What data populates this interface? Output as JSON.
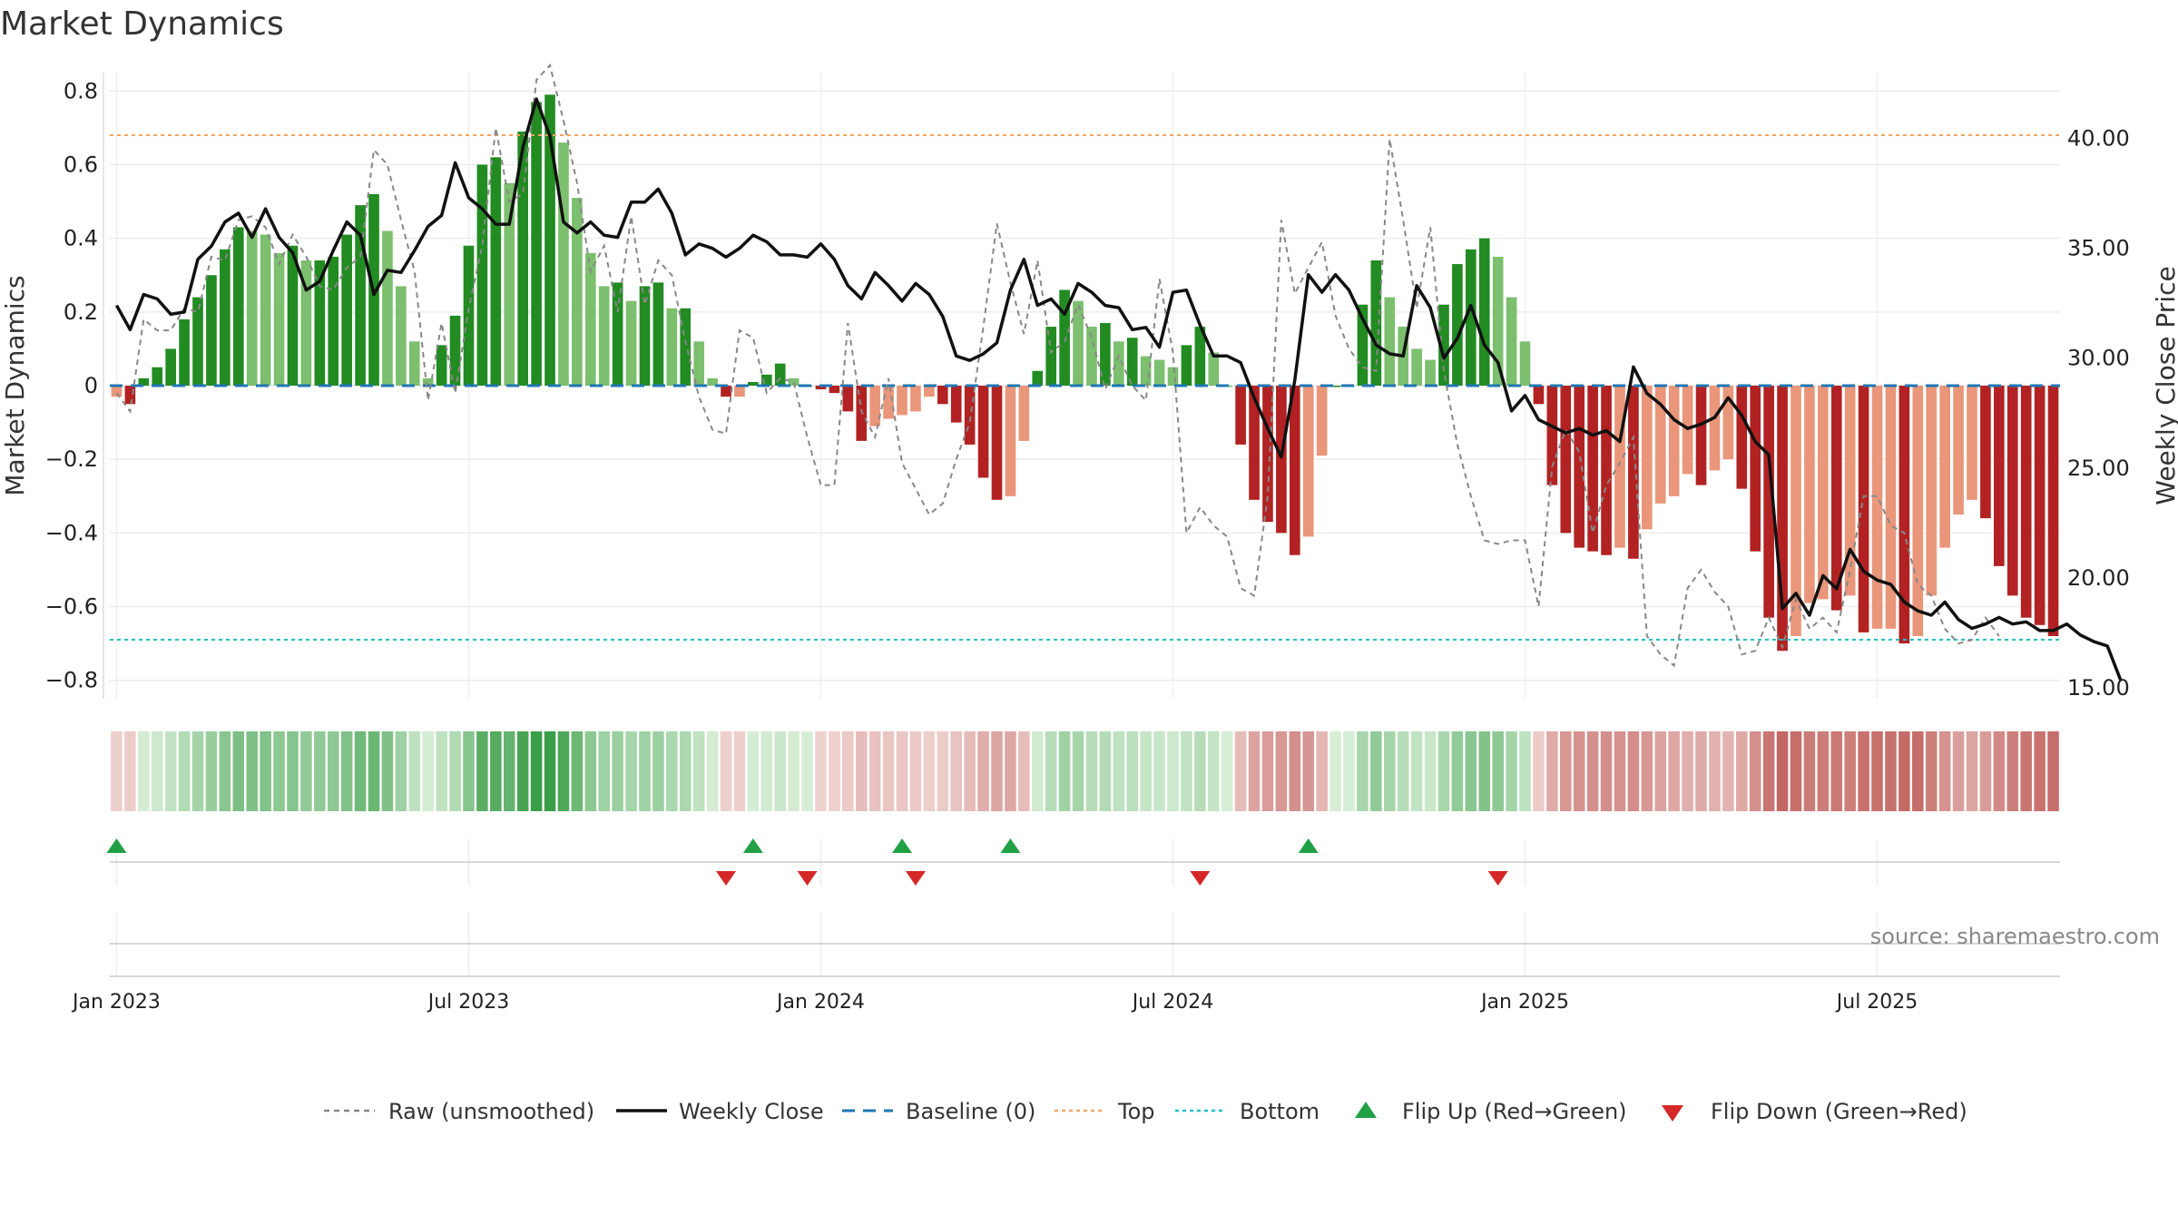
{
  "title": "Market Dynamics",
  "source": "source: sharemaestro.com",
  "chart_data": {
    "type": "bar",
    "title": "Market Dynamics",
    "ylabel_left": "Market Dynamics",
    "ylabel_right": "Weekly Close Price",
    "ylim_left": [
      -0.85,
      0.85
    ],
    "ylim_right": [
      14.5,
      43.0
    ],
    "yticks_left": [
      "0.8",
      "0.6",
      "0.4",
      "0.2",
      "0",
      "−0.2",
      "−0.4",
      "−0.6",
      "−0.8"
    ],
    "yticks_left_values": [
      0.8,
      0.6,
      0.4,
      0.2,
      0,
      -0.2,
      -0.4,
      -0.6,
      -0.8
    ],
    "yticks_right": [
      "40.00",
      "35.00",
      "30.00",
      "25.00",
      "20.00",
      "15.00"
    ],
    "yticks_right_values": [
      40,
      35,
      30,
      25,
      20,
      15
    ],
    "xticks": [
      "Jan 2023",
      "Jul 2023",
      "Jan 2024",
      "Jul 2024",
      "Jan 2025",
      "Jul 2025"
    ],
    "xticks_weeks": [
      0,
      26,
      52,
      78,
      104,
      130
    ],
    "top_line": 0.68,
    "bottom_line": -0.69,
    "baseline": 0,
    "colors": {
      "strong_green": "#228B22",
      "light_green": "#7CBF6E",
      "strong_red": "#B22222",
      "light_red": "#E9967A",
      "top": "#F4A460",
      "bottom": "#20C0C8",
      "baseline": "#1F77B4",
      "raw": "#888888",
      "close": "#111111",
      "flip_up": "#22A045",
      "flip_down": "#D62728"
    },
    "dynamics": [
      -0.03,
      -0.05,
      0.02,
      0.05,
      0.1,
      0.18,
      0.24,
      0.3,
      0.37,
      0.43,
      0.42,
      0.41,
      0.36,
      0.38,
      0.34,
      0.34,
      0.35,
      0.41,
      0.49,
      0.52,
      0.42,
      0.27,
      0.12,
      0.02,
      0.11,
      0.19,
      0.38,
      0.6,
      0.62,
      0.55,
      0.69,
      0.77,
      0.79,
      0.66,
      0.51,
      0.36,
      0.27,
      0.28,
      0.23,
      0.27,
      0.28,
      0.21,
      0.21,
      0.12,
      0.02,
      -0.03,
      -0.03,
      0.01,
      0.03,
      0.06,
      0.02,
      0.0,
      -0.01,
      -0.02,
      -0.07,
      -0.15,
      -0.11,
      -0.09,
      -0.08,
      -0.07,
      -0.03,
      -0.05,
      -0.1,
      -0.16,
      -0.25,
      -0.31,
      -0.3,
      -0.15,
      0.04,
      0.16,
      0.26,
      0.23,
      0.16,
      0.17,
      0.12,
      0.13,
      0.08,
      0.07,
      0.05,
      0.11,
      0.16,
      0.09,
      0.0,
      -0.16,
      -0.31,
      -0.37,
      -0.4,
      -0.46,
      -0.41,
      -0.19,
      0.0,
      0.0,
      0.22,
      0.34,
      0.24,
      0.16,
      0.1,
      0.07,
      0.22,
      0.33,
      0.37,
      0.4,
      0.35,
      0.24,
      0.12,
      -0.05,
      -0.27,
      -0.4,
      -0.44,
      -0.45,
      -0.46,
      -0.44,
      -0.47,
      -0.39,
      -0.32,
      -0.3,
      -0.24,
      -0.27,
      -0.23,
      -0.2,
      -0.28,
      -0.45,
      -0.63,
      -0.72,
      -0.68,
      -0.59,
      -0.58,
      -0.61,
      -0.57,
      -0.67,
      -0.66,
      -0.66,
      -0.7,
      -0.68,
      -0.57,
      -0.44,
      -0.35,
      -0.31,
      -0.36,
      -0.49,
      -0.57,
      -0.63,
      -0.65,
      -0.68
    ],
    "raw": [
      -0.02,
      -0.07,
      0.18,
      0.15,
      0.15,
      0.21,
      0.2,
      0.35,
      0.34,
      0.45,
      0.46,
      0.43,
      0.33,
      0.41,
      0.35,
      0.27,
      0.26,
      0.32,
      0.35,
      0.64,
      0.6,
      0.45,
      0.31,
      -0.04,
      0.17,
      -0.02,
      0.21,
      0.38,
      0.7,
      0.5,
      0.52,
      0.83,
      0.87,
      0.72,
      0.55,
      0.31,
      0.38,
      0.2,
      0.46,
      0.22,
      0.34,
      0.3,
      0.12,
      -0.03,
      -0.12,
      -0.13,
      0.15,
      0.13,
      -0.02,
      0.02,
      0.01,
      -0.14,
      -0.27,
      -0.27,
      0.17,
      -0.07,
      -0.14,
      0.02,
      -0.21,
      -0.28,
      -0.35,
      -0.32,
      -0.2,
      -0.1,
      0.16,
      0.44,
      0.28,
      0.14,
      0.34,
      0.09,
      0.12,
      0.22,
      0.13,
      -0.01,
      0.08,
      0.0,
      -0.04,
      0.29,
      0.09,
      -0.4,
      -0.33,
      -0.38,
      -0.41,
      -0.55,
      -0.57,
      -0.3,
      0.45,
      0.25,
      0.32,
      0.39,
      0.19,
      0.1,
      0.05,
      0.04,
      0.67,
      0.45,
      0.21,
      0.43,
      0.04,
      -0.16,
      -0.3,
      -0.42,
      -0.43,
      -0.42,
      -0.42,
      -0.6,
      -0.22,
      -0.12,
      -0.18,
      -0.4,
      -0.27,
      -0.21,
      -0.14,
      -0.68,
      -0.73,
      -0.76,
      -0.55,
      -0.5,
      -0.56,
      -0.6,
      -0.73,
      -0.72,
      -0.63,
      -0.71,
      -0.58,
      -0.66,
      -0.63,
      -0.67,
      -0.5,
      -0.3,
      -0.3,
      -0.38,
      -0.4,
      -0.54,
      -0.57,
      -0.66,
      -0.7,
      -0.69,
      -0.63,
      -0.68
    ],
    "close": [
      32.4,
      31.3,
      32.9,
      32.7,
      32.0,
      32.1,
      34.5,
      35.1,
      36.2,
      36.6,
      35.5,
      36.8,
      35.5,
      34.8,
      33.1,
      33.5,
      34.9,
      36.2,
      35.6,
      32.9,
      34.0,
      33.9,
      34.9,
      36.0,
      36.5,
      38.9,
      37.3,
      36.8,
      36.1,
      36.1,
      39.6,
      41.8,
      40.1,
      36.2,
      35.7,
      36.2,
      35.6,
      35.5,
      37.1,
      37.1,
      37.7,
      36.6,
      34.7,
      35.2,
      35.0,
      34.6,
      35.0,
      35.6,
      35.3,
      34.7,
      34.7,
      34.6,
      35.2,
      34.5,
      33.3,
      32.7,
      33.9,
      33.3,
      32.6,
      33.4,
      32.9,
      31.9,
      30.1,
      29.9,
      30.2,
      30.7,
      33.1,
      34.5,
      32.4,
      32.7,
      32.0,
      33.4,
      33.0,
      32.4,
      32.3,
      31.3,
      31.4,
      30.5,
      33.0,
      33.1,
      31.5,
      30.1,
      30.1,
      29.8,
      28.2,
      26.8,
      25.5,
      29.0,
      33.8,
      33.0,
      33.8,
      33.1,
      31.8,
      30.6,
      30.2,
      30.1,
      33.3,
      32.3,
      30.0,
      30.9,
      32.4,
      30.6,
      29.8,
      27.6,
      28.3,
      27.2,
      26.9,
      26.6,
      26.8,
      26.5,
      26.7,
      26.2,
      29.6,
      28.4,
      27.9,
      27.2,
      26.8,
      27.0,
      27.3,
      28.2,
      27.4,
      26.2,
      25.6,
      18.6,
      19.3,
      18.3,
      20.1,
      19.5,
      21.3,
      20.3,
      19.9,
      19.7,
      18.9,
      18.5,
      18.3,
      18.9,
      18.1,
      17.7,
      17.9,
      18.2,
      17.9,
      18.0,
      17.6,
      17.6,
      17.9,
      17.4,
      17.1,
      16.9,
      15.3
    ],
    "flip_up_weeks": [
      0,
      47,
      58,
      66,
      88
    ],
    "flip_down_weeks": [
      45,
      51,
      59,
      80,
      102
    ],
    "series_names": [
      "Raw (unsmoothed)",
      "Weekly Close",
      "Baseline (0)",
      "Top",
      "Bottom",
      "Flip Up (Red→Green)",
      "Flip Down (Green→Red)"
    ]
  },
  "legend": {
    "raw": "Raw (unsmoothed)",
    "close": "Weekly Close",
    "baseline": "Baseline (0)",
    "top": "Top",
    "bottom": "Bottom",
    "flip_up": "Flip Up (Red→Green)",
    "flip_down": "Flip Down (Green→Red)"
  }
}
